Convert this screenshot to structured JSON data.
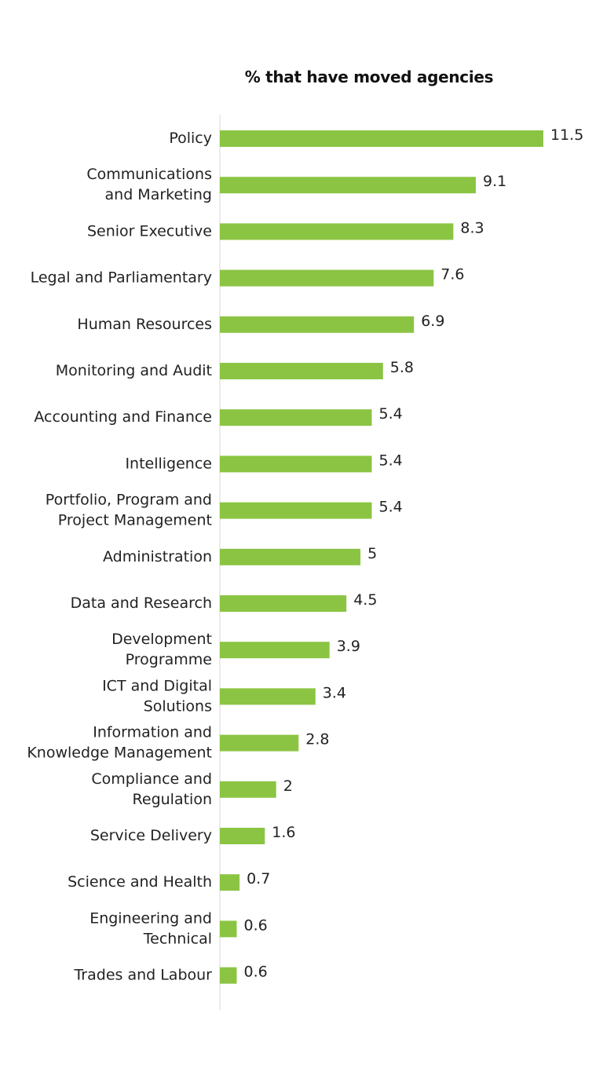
{
  "chart_data": {
    "type": "bar",
    "orientation": "horizontal",
    "title": "% that have moved agencies",
    "xlabel": "",
    "ylabel": "",
    "grid": false,
    "legend": "none",
    "bar_color": "#8BC443",
    "categories": [
      "Policy",
      "Communications\nand Marketing",
      "Senior Executive",
      "Legal and Parliamentary",
      "Human Resources",
      "Monitoring and Audit",
      "Accounting and Finance",
      "Intelligence",
      "Portfolio, Program and\nProject Management",
      "Administration",
      "Data and Research",
      "Development\nProgramme",
      "ICT and Digital\nSolutions",
      "Information and\nKnowledge Management",
      "Compliance and\nRegulation",
      "Service Delivery",
      "Science and Health",
      "Engineering and\nTechnical",
      "Trades and Labour"
    ],
    "values": [
      11.5,
      9.1,
      8.3,
      7.6,
      6.9,
      5.8,
      5.4,
      5.4,
      5.4,
      5,
      4.5,
      3.9,
      3.4,
      2.8,
      2,
      1.6,
      0.7,
      0.6,
      0.6
    ],
    "value_labels": [
      "11.5",
      "9.1",
      "8.3",
      "7.6",
      "6.9",
      "5.8",
      "5.4",
      "5.4",
      "5.4",
      "5",
      "4.5",
      "3.9",
      "3.4",
      "2.8",
      "2",
      "1.6",
      "0.7",
      "0.6",
      "0.6"
    ]
  }
}
